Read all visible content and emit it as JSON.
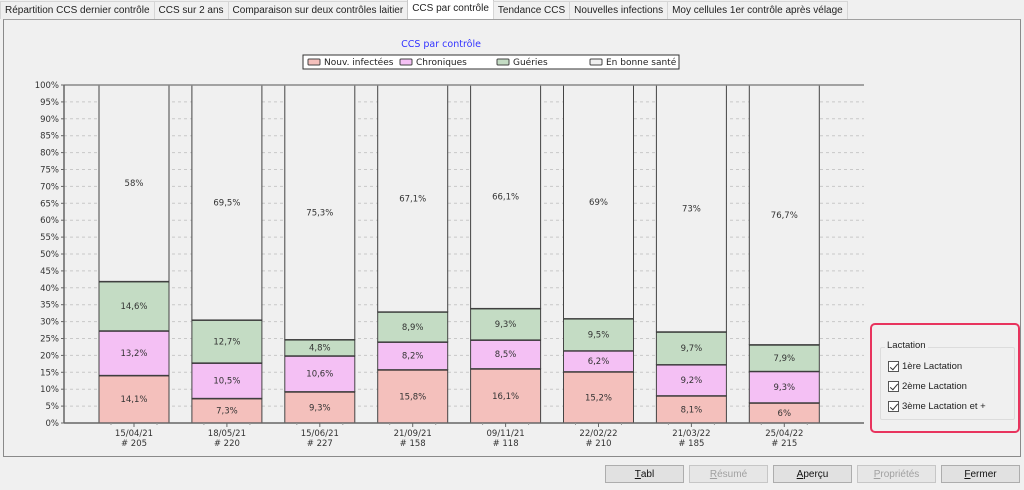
{
  "tabs": [
    {
      "label": "Répartition CCS dernier contrôle",
      "active": false
    },
    {
      "label": "CCS sur 2 ans",
      "active": false
    },
    {
      "label": "Comparaison sur deux contrôles laitier",
      "active": false
    },
    {
      "label": "CCS par contrôle",
      "active": true
    },
    {
      "label": "Tendance CCS",
      "active": false
    },
    {
      "label": "Nouvelles infections",
      "active": false
    },
    {
      "label": "Moy cellules 1er contrôle après vélage",
      "active": false
    }
  ],
  "chart_data": {
    "type": "bar",
    "stacked": true,
    "title": "CCS par contrôle",
    "xlabel": "",
    "ylabel": "",
    "ylim": [
      0,
      100
    ],
    "yticks": [
      "0%",
      "5%",
      "10%",
      "15%",
      "20%",
      "25%",
      "30%",
      "35%",
      "40%",
      "45%",
      "50%",
      "55%",
      "60%",
      "65%",
      "70%",
      "75%",
      "80%",
      "85%",
      "90%",
      "95%",
      "100%"
    ],
    "grid": true,
    "legend_position": "top-center",
    "categories": [
      "15/04/21",
      "18/05/21",
      "15/06/21",
      "21/09/21",
      "09/11/21",
      "22/02/22",
      "21/03/22",
      "25/04/22"
    ],
    "category_counts": [
      "# 205",
      "# 220",
      "# 227",
      "# 158",
      "# 118",
      "# 210",
      "# 185",
      "# 215"
    ],
    "series": [
      {
        "name": "Nouv. infectées",
        "color": "#f4c0bc",
        "values": [
          14.1,
          7.3,
          9.3,
          15.8,
          16.1,
          15.2,
          8.1,
          6
        ],
        "labels": [
          "14,1%",
          "7,3%",
          "9,3%",
          "15,8%",
          "16,1%",
          "15,2%",
          "8,1%",
          "6%"
        ]
      },
      {
        "name": "Chroniques",
        "color": "#f4c0f4",
        "values": [
          13.2,
          10.5,
          10.6,
          8.2,
          8.5,
          6.2,
          9.2,
          9.3
        ],
        "labels": [
          "13,2%",
          "10,5%",
          "10,6%",
          "8,2%",
          "8,5%",
          "6,2%",
          "9,2%",
          "9,3%"
        ]
      },
      {
        "name": "Guéries",
        "color": "#c4dcc4",
        "values": [
          14.6,
          12.7,
          4.8,
          8.9,
          9.3,
          9.5,
          9.7,
          7.9
        ],
        "labels": [
          "14,6%",
          "12,7%",
          "4,8%",
          "8,9%",
          "9,3%",
          "9,5%",
          "9,7%",
          "7,9%"
        ]
      },
      {
        "name": "En bonne santé",
        "color": "#f0f0f0",
        "values": [
          58,
          69.5,
          75.3,
          67.1,
          66.1,
          69,
          73,
          76.7
        ],
        "labels": [
          "58%",
          "69,5%",
          "75,3%",
          "67,1%",
          "66,1%",
          "69%",
          "73%",
          "76,7%"
        ]
      }
    ]
  },
  "lactation": {
    "title": "Lactation",
    "items": [
      {
        "label": "1ère Lactation",
        "checked": true
      },
      {
        "label": "2ème Lactation",
        "checked": true
      },
      {
        "label": "3ème Lactation et +",
        "checked": true
      }
    ]
  },
  "buttons": [
    {
      "name": "tabl-button",
      "mnemonic": "T",
      "rest": "abl",
      "enabled": true
    },
    {
      "name": "resume-button",
      "mnemonic": "R",
      "rest": "ésumé",
      "enabled": false
    },
    {
      "name": "apercu-button",
      "mnemonic": "A",
      "rest": "perçu",
      "enabled": true
    },
    {
      "name": "proprietes-button",
      "mnemonic": "P",
      "rest": "ropriétés",
      "enabled": false
    },
    {
      "name": "fermer-button",
      "mnemonic": "F",
      "rest": "ermer",
      "enabled": true
    }
  ]
}
